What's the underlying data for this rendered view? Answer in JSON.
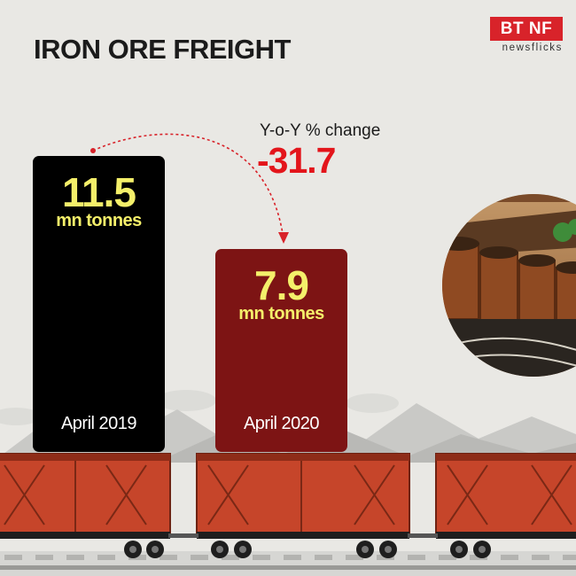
{
  "title": "IRON ORE FREIGHT",
  "brand": {
    "logo_text": "BT NF",
    "sub_text": "newsflicks",
    "color": "#d8232a"
  },
  "change": {
    "label": "Y-o-Y % change",
    "value": "-31.7",
    "color": "#e3151b"
  },
  "chart_data": {
    "type": "bar",
    "title": "IRON ORE FREIGHT",
    "categories": [
      "April 2019",
      "April 2020"
    ],
    "values": [
      11.5,
      7.9
    ],
    "value_labels": [
      "11.5",
      "7.9"
    ],
    "unit": "mn tonnes",
    "bar_colors": [
      "#000000",
      "#7d1414"
    ],
    "label_color": "#f4ef6a",
    "ylim": [
      0,
      11.5
    ],
    "grid": false,
    "legend": "none",
    "annotation": {
      "label": "Y-o-Y % change",
      "value": "-31.7"
    }
  }
}
